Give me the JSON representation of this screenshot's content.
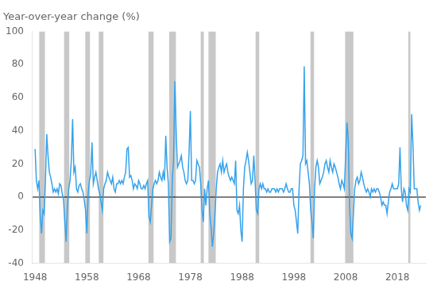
{
  "chart_data": {
    "type": "line",
    "title": "Year-over-year change (%)",
    "xlim": [
      1947.5,
      2023.5
    ],
    "ylim": [
      -40,
      100
    ],
    "xticks": [
      1948,
      1958,
      1968,
      1978,
      1988,
      1998,
      2008,
      2018
    ],
    "yticks": [
      -40,
      -20,
      0,
      20,
      40,
      60,
      80,
      100
    ],
    "grid": false,
    "bands": {
      "color": "#c8c8c8",
      "ranges": [
        [
          1948.8,
          1949.9
        ],
        [
          1953.6,
          1954.6
        ],
        [
          1957.7,
          1958.6
        ],
        [
          1960.3,
          1961.2
        ],
        [
          1969.9,
          1970.9
        ],
        [
          1973.9,
          1975.2
        ],
        [
          1980.0,
          1980.6
        ],
        [
          1981.5,
          1982.9
        ],
        [
          1990.6,
          1991.3
        ],
        [
          2001.2,
          2001.9
        ],
        [
          2007.9,
          2009.5
        ],
        [
          2020.1,
          2020.5
        ]
      ]
    },
    "zero_line": {
      "y": 0,
      "color": "#000000"
    },
    "x": [
      1948,
      1948.25,
      1948.5,
      1948.75,
      1949,
      1949.25,
      1949.5,
      1949.75,
      1950,
      1950.25,
      1950.5,
      1950.75,
      1951,
      1951.25,
      1951.5,
      1951.75,
      1952,
      1952.25,
      1952.5,
      1952.75,
      1953,
      1953.25,
      1953.5,
      1953.75,
      1954,
      1954.25,
      1954.5,
      1954.75,
      1955,
      1955.25,
      1955.5,
      1955.75,
      1956,
      1956.25,
      1956.5,
      1956.75,
      1957,
      1957.25,
      1957.5,
      1957.75,
      1958,
      1958.25,
      1958.5,
      1958.75,
      1959,
      1959.25,
      1959.5,
      1959.75,
      1960,
      1960.25,
      1960.5,
      1960.75,
      1961,
      1961.25,
      1961.5,
      1961.75,
      1962,
      1962.25,
      1962.5,
      1962.75,
      1963,
      1963.25,
      1963.5,
      1963.75,
      1964,
      1964.25,
      1964.5,
      1964.75,
      1965,
      1965.25,
      1965.5,
      1965.75,
      1966,
      1966.25,
      1966.5,
      1966.75,
      1967,
      1967.25,
      1967.5,
      1967.75,
      1968,
      1968.25,
      1968.5,
      1968.75,
      1969,
      1969.25,
      1969.5,
      1969.75,
      1970,
      1970.25,
      1970.5,
      1970.75,
      1971,
      1971.25,
      1971.5,
      1971.75,
      1972,
      1972.25,
      1972.5,
      1972.75,
      1973,
      1973.25,
      1973.5,
      1973.75,
      1974,
      1974.25,
      1974.5,
      1974.75,
      1975,
      1975.25,
      1975.5,
      1975.75,
      1976,
      1976.25,
      1976.5,
      1976.75,
      1977,
      1977.25,
      1977.5,
      1977.75,
      1978,
      1978.25,
      1978.5,
      1978.75,
      1979,
      1979.25,
      1979.5,
      1979.75,
      1980,
      1980.25,
      1980.5,
      1980.75,
      1981,
      1981.25,
      1981.5,
      1981.75,
      1982,
      1982.25,
      1982.5,
      1982.75,
      1983,
      1983.25,
      1983.5,
      1983.75,
      1984,
      1984.25,
      1984.5,
      1984.75,
      1985,
      1985.25,
      1985.5,
      1985.75,
      1986,
      1986.25,
      1986.5,
      1986.75,
      1987,
      1987.25,
      1987.5,
      1987.75,
      1988,
      1988.25,
      1988.5,
      1988.75,
      1989,
      1989.25,
      1989.5,
      1989.75,
      1990,
      1990.25,
      1990.5,
      1990.75,
      1991,
      1991.25,
      1991.5,
      1991.75,
      1992,
      1992.25,
      1992.5,
      1992.75,
      1993,
      1993.25,
      1993.5,
      1993.75,
      1994,
      1994.25,
      1994.5,
      1994.75,
      1995,
      1995.25,
      1995.5,
      1995.75,
      1996,
      1996.25,
      1996.5,
      1996.75,
      1997,
      1997.25,
      1997.5,
      1997.75,
      1998,
      1998.25,
      1998.5,
      1998.75,
      1999,
      1999.25,
      1999.5,
      1999.75,
      2000,
      2000.25,
      2000.5,
      2000.75,
      2001,
      2001.25,
      2001.5,
      2001.75,
      2002,
      2002.25,
      2002.5,
      2002.75,
      2003,
      2003.25,
      2003.5,
      2003.75,
      2004,
      2004.25,
      2004.5,
      2004.75,
      2005,
      2005.25,
      2005.5,
      2005.75,
      2006,
      2006.25,
      2006.5,
      2006.75,
      2007,
      2007.25,
      2007.5,
      2007.75,
      2008,
      2008.25,
      2008.5,
      2008.75,
      2009,
      2009.25,
      2009.5,
      2009.75,
      2010,
      2010.25,
      2010.5,
      2010.75,
      2011,
      2011.25,
      2011.5,
      2011.75,
      2012,
      2012.25,
      2012.5,
      2012.75,
      2013,
      2013.25,
      2013.5,
      2013.75,
      2014,
      2014.25,
      2014.5,
      2014.75,
      2015,
      2015.25,
      2015.5,
      2015.75,
      2016,
      2016.25,
      2016.5,
      2016.75,
      2017,
      2017.25,
      2017.5,
      2017.75,
      2018,
      2018.25,
      2018.5,
      2018.75,
      2019,
      2019.25,
      2019.5,
      2019.75,
      2020,
      2020.25,
      2020.5,
      2020.75,
      2021,
      2021.25,
      2021.5,
      2021.75,
      2022,
      2022.25,
      2022.5
    ],
    "values": [
      29,
      10,
      5,
      10,
      -12,
      -22,
      -8,
      -10,
      10,
      38,
      25,
      15,
      12,
      8,
      3,
      5,
      3,
      5,
      2,
      8,
      7,
      2,
      -2,
      -15,
      -27,
      -5,
      5,
      10,
      22,
      47,
      15,
      18,
      5,
      3,
      7,
      8,
      5,
      3,
      -2,
      -8,
      -22,
      2,
      10,
      14,
      33,
      8,
      12,
      15,
      10,
      5,
      2,
      -3,
      -8,
      5,
      8,
      10,
      15,
      12,
      10,
      8,
      12,
      5,
      3,
      8,
      8,
      10,
      8,
      10,
      8,
      12,
      15,
      29,
      30,
      12,
      13,
      10,
      5,
      8,
      7,
      5,
      10,
      8,
      5,
      5,
      7,
      5,
      8,
      10,
      -12,
      -15,
      -5,
      5,
      8,
      10,
      8,
      10,
      15,
      12,
      10,
      15,
      10,
      37,
      18,
      8,
      -27,
      -25,
      10,
      22,
      70,
      40,
      18,
      20,
      22,
      25,
      18,
      15,
      10,
      8,
      10,
      27,
      52,
      10,
      10,
      8,
      10,
      22,
      20,
      18,
      8,
      -8,
      -15,
      5,
      -5,
      5,
      10,
      -10,
      -18,
      -30,
      -22,
      -10,
      5,
      15,
      18,
      20,
      15,
      22,
      15,
      18,
      20,
      15,
      12,
      10,
      12,
      10,
      8,
      22,
      -8,
      -10,
      -5,
      -20,
      -27,
      5,
      18,
      22,
      27,
      22,
      15,
      8,
      10,
      25,
      10,
      -8,
      -10,
      5,
      8,
      5,
      8,
      5,
      5,
      3,
      5,
      3,
      3,
      5,
      5,
      5,
      3,
      5,
      3,
      5,
      5,
      5,
      3,
      5,
      8,
      5,
      3,
      3,
      5,
      5,
      -5,
      -8,
      -15,
      -22,
      5,
      20,
      22,
      25,
      79,
      20,
      22,
      15,
      8,
      -8,
      -15,
      -25,
      5,
      18,
      22,
      18,
      8,
      10,
      12,
      15,
      20,
      22,
      18,
      15,
      22,
      18,
      15,
      20,
      18,
      15,
      12,
      8,
      5,
      10,
      8,
      5,
      25,
      45,
      35,
      -5,
      -22,
      -25,
      -10,
      5,
      10,
      12,
      8,
      10,
      15,
      12,
      8,
      5,
      3,
      5,
      3,
      0,
      5,
      3,
      5,
      3,
      5,
      5,
      3,
      0,
      -5,
      -3,
      -5,
      -5,
      -10,
      -3,
      3,
      5,
      8,
      5,
      5,
      5,
      5,
      8,
      30,
      5,
      -3,
      5,
      3,
      -5,
      -8,
      5,
      3,
      50,
      32,
      5,
      5,
      5,
      -3,
      -8,
      -5
    ]
  }
}
